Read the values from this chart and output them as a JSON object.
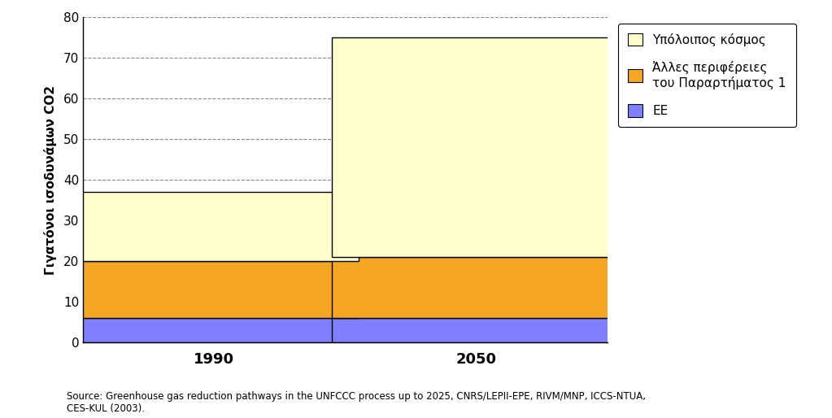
{
  "categories": [
    "1990",
    "2050"
  ],
  "ee": [
    6,
    6
  ],
  "alles": [
    14,
    15
  ],
  "ypoloipos": [
    17,
    54
  ],
  "colors": {
    "ee": "#8080FF",
    "alles": "#F5A623",
    "ypoloipos": "#FFFFCC"
  },
  "ylim": [
    0,
    80
  ],
  "yticks": [
    0,
    10,
    20,
    30,
    40,
    50,
    60,
    70,
    80
  ],
  "ylabel": "Γιγατόνοι ισοδυνάμων CO2",
  "legend_labels": [
    "Υπόλοιπος κόσμος",
    "Ἀλλες περιφέρειες\nτου Παραρτήματος 1",
    "ΕΕ"
  ],
  "source_text": "Source: Greenhouse gas reduction pathways in the UNFCCC process up to 2025, CNRS/LEPII-EPE, RIVM/MNP, ICCS-NTUA,\nCES-KUL (2003).",
  "bar_width": 0.55,
  "x_positions": [
    0.25,
    0.75
  ],
  "xlim": [
    0,
    1
  ],
  "background_color": "#FFFFFF",
  "edge_color": "#000000"
}
